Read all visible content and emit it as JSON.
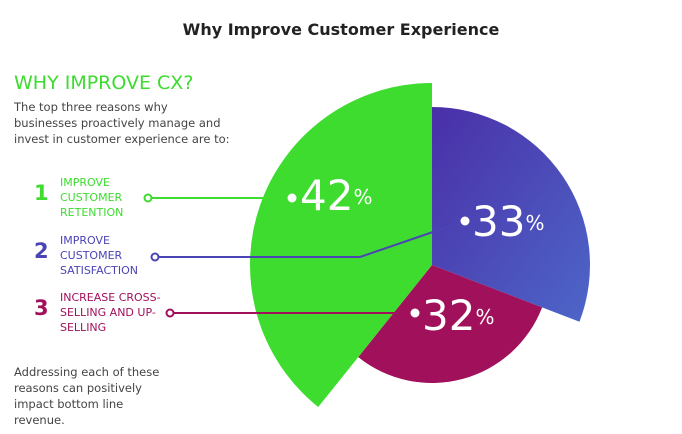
{
  "chart_data": {
    "type": "pie",
    "title": "Why Improve Customer Experience",
    "heading": "WHY IMPROVE CX?",
    "intro": "The top three reasons why businesses proactively manage and invest in customer experience are to:",
    "footnote": "Addressing each of these reasons can positively impact bottom line revenue.",
    "ranks": [
      1,
      2,
      3
    ],
    "categories": [
      "IMPROVE CUSTOMER RETENTION",
      "IMPROVE CUSTOMER SATISFACTION",
      "INCREASE CROSS-SELLING AND UP-SELLING"
    ],
    "values": [
      42,
      33,
      32
    ],
    "unit": "%",
    "colors": [
      "#3ddc2f",
      "#4a44b4",
      "#a1105b"
    ]
  }
}
